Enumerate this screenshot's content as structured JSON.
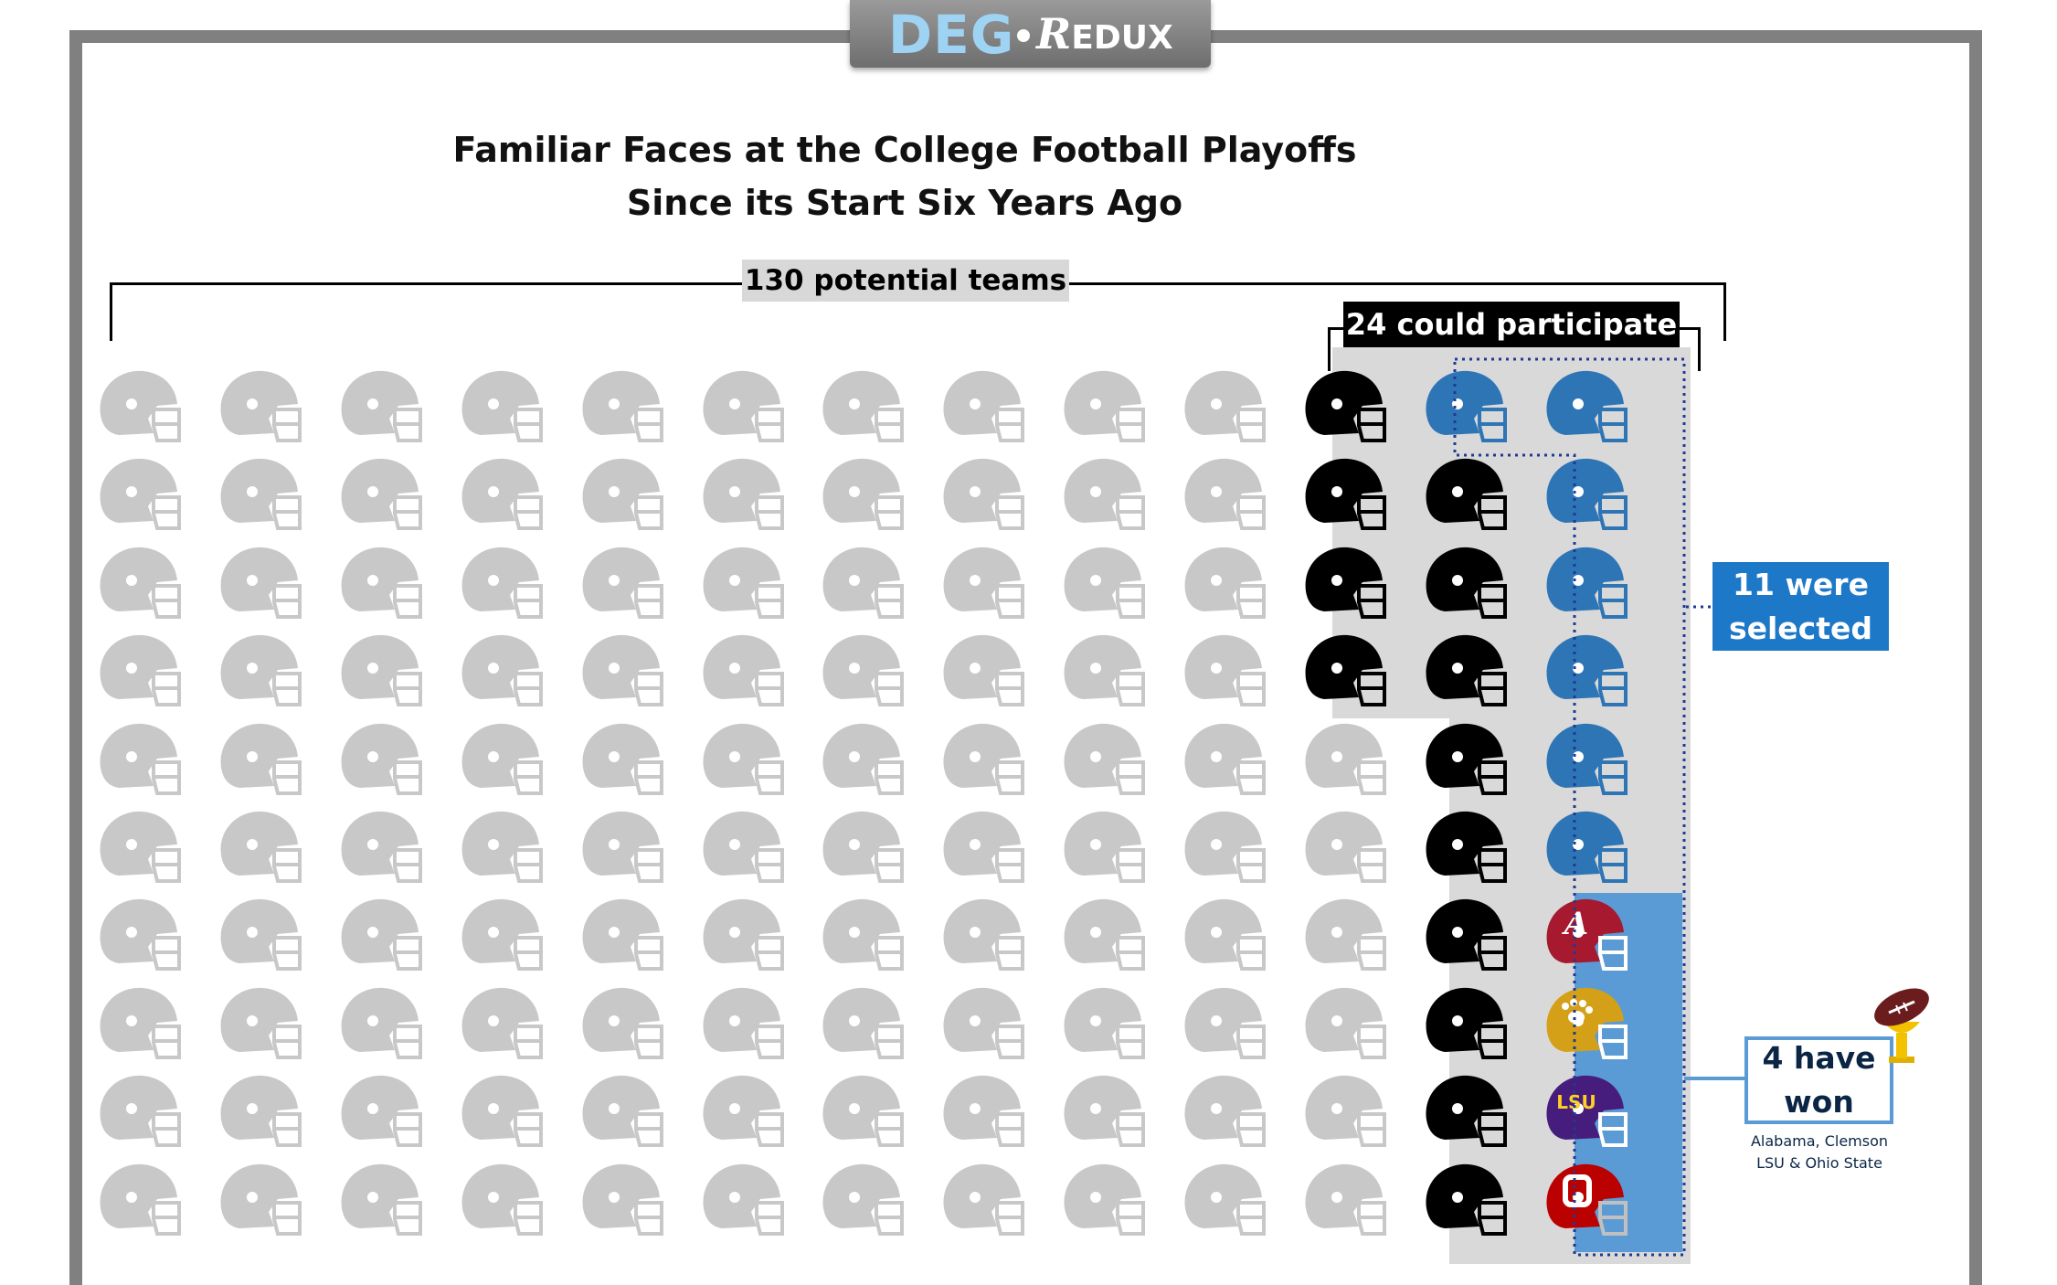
{
  "logo": {
    "deg": "DEG",
    "redux_r": "R",
    "redux_rest": "EDUX"
  },
  "title_line1": "Familiar Faces at the College Football Playoffs",
  "title_line2": "Since its Start Six Years Ago",
  "labels": {
    "potential": "130 potential teams",
    "participate": "24 could participate",
    "selected_line1": "11 were",
    "selected_line2": "selected",
    "won_line1": "4 have",
    "won_line2": "won",
    "won_note_line1": "Alabama, Clemson",
    "won_note_line2": "LSU & Ohio State"
  },
  "counts": {
    "potential": 130,
    "participate": 24,
    "selected": 11,
    "won": 4
  },
  "colors": {
    "gray_helmet": "#c8c8c8",
    "participant_helmet": "#000000",
    "selected_helmet": "#2e75b6",
    "shade": "#d9d9d9",
    "winner_bg": "#5b9bd5"
  },
  "winners": [
    {
      "team": "Alabama",
      "shell": "#a6192e",
      "mask": "#ffffff",
      "icon": "letter-a-logo"
    },
    {
      "team": "Clemson",
      "shell": "#d4a017",
      "mask": "#ffffff",
      "icon": "paw-logo"
    },
    {
      "team": "LSU",
      "shell": "#461d7c",
      "mask": "#ffffff",
      "icon": "lsu-logo"
    },
    {
      "team": "Ohio State",
      "shell": "#bb0000",
      "mask": "#c0c0c0",
      "icon": "block-o-logo"
    }
  ]
}
